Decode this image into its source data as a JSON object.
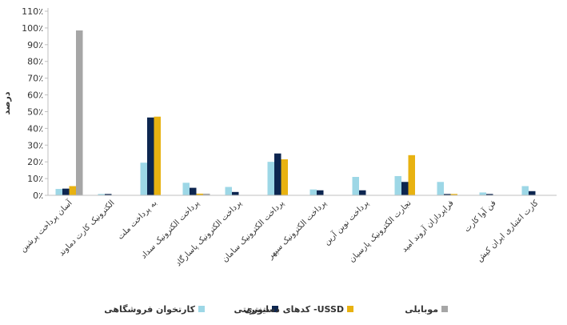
{
  "chart_data": {
    "type": "bar",
    "ylabel": "درصد",
    "ylim": [
      0,
      110
    ],
    "yticks": [
      0,
      10,
      20,
      30,
      40,
      50,
      60,
      70,
      80,
      90,
      100,
      110
    ],
    "ytick_labels": [
      "0٪",
      "10٪",
      "20٪",
      "30٪",
      "40٪",
      "50٪",
      "60٪",
      "70٪",
      "80٪",
      "90٪",
      "100٪",
      "110٪"
    ],
    "categories": [
      "آسان پرداخت پرشین",
      "الکترونیک کارت دماوند",
      "به پرداخت ملت",
      "پرداخت الکترونیک سداد",
      "پرداخت الکترونیک پاسارگاد",
      "پرداخت الکترونیک سامان",
      "پرداخت الکترونیک سپهر",
      "پرداخت نوین آرین",
      "تجارت الکترونیک پارسیان",
      "فراپردازان آروند امید",
      "فن آوا کارت",
      "کارت اعتباری ایران کیش"
    ],
    "series": [
      {
        "name": "کارتخوان فروشگاهی",
        "color": "#9dd7e6",
        "values": [
          3.8,
          0.8,
          19.5,
          7.5,
          5,
          20,
          3.5,
          11,
          11.5,
          8,
          1.7,
          5.5
        ]
      },
      {
        "name": "اینترنتی",
        "color": "#0d2650",
        "values": [
          4,
          0.8,
          46.5,
          4.5,
          2,
          25,
          3,
          3,
          8,
          0.8,
          0.8,
          2.5
        ]
      },
      {
        "name": "کدهای دستوری -USSD",
        "color": "#e8b211",
        "values": [
          5.5,
          0,
          47,
          1,
          0,
          21.5,
          0,
          0,
          24,
          0.8,
          0,
          0
        ]
      },
      {
        "name": "موبایلی",
        "color": "#a6a6a6",
        "values": [
          98.5,
          0,
          0,
          1,
          0,
          0,
          0,
          0,
          0,
          0,
          0,
          0
        ]
      }
    ],
    "grid": false,
    "legend": "bottom"
  }
}
